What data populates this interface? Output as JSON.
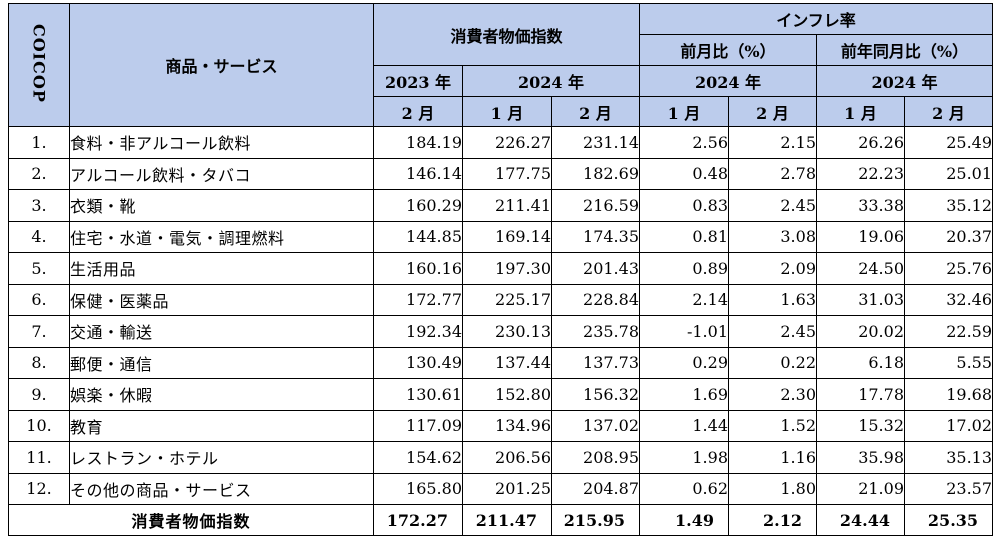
{
  "header": {
    "coicop": "COICOP",
    "item": "商品・サービス",
    "cpi_group": "消費者物価指数",
    "inflation_group": "インフレ率",
    "mom": "前月比（%）",
    "yoy": "前年同月比（%）",
    "year_2023": "2023 年",
    "year_2024_a": "2024 年",
    "year_2024_b": "2024 年",
    "year_2024_c": "2024 年",
    "m_feb_1": "2 月",
    "m_jan_1": "1 月",
    "m_feb_2": "2 月",
    "m_jan_2": "1 月",
    "m_feb_3": "2 月",
    "m_jan_3": "1 月",
    "m_feb_4": "2 月"
  },
  "rows": [
    {
      "code": "1.",
      "name": "食料・非アルコール飲料",
      "v1": "184.19",
      "v2": "226.27",
      "v3": "231.14",
      "v4": "2.56",
      "v5": "2.15",
      "v6": "26.26",
      "v7": "25.49"
    },
    {
      "code": "2.",
      "name": "アルコール飲料・タバコ",
      "v1": "146.14",
      "v2": "177.75",
      "v3": "182.69",
      "v4": "0.48",
      "v5": "2.78",
      "v6": "22.23",
      "v7": "25.01"
    },
    {
      "code": "3.",
      "name": "衣類・靴",
      "v1": "160.29",
      "v2": "211.41",
      "v3": "216.59",
      "v4": "0.83",
      "v5": "2.45",
      "v6": "33.38",
      "v7": "35.12"
    },
    {
      "code": "4.",
      "name": "住宅・水道・電気・調理燃料",
      "v1": "144.85",
      "v2": "169.14",
      "v3": "174.35",
      "v4": "0.81",
      "v5": "3.08",
      "v6": "19.06",
      "v7": "20.37"
    },
    {
      "code": "5.",
      "name": "生活用品",
      "v1": "160.16",
      "v2": "197.30",
      "v3": "201.43",
      "v4": "0.89",
      "v5": "2.09",
      "v6": "24.50",
      "v7": "25.76"
    },
    {
      "code": "6.",
      "name": "保健・医薬品",
      "v1": "172.77",
      "v2": "225.17",
      "v3": "228.84",
      "v4": "2.14",
      "v5": "1.63",
      "v6": "31.03",
      "v7": "32.46"
    },
    {
      "code": "7.",
      "name": "交通・輸送",
      "v1": "192.34",
      "v2": "230.13",
      "v3": "235.78",
      "v4": "-1.01",
      "v5": "2.45",
      "v6": "20.02",
      "v7": "22.59"
    },
    {
      "code": "8.",
      "name": "郵便・通信",
      "v1": "130.49",
      "v2": "137.44",
      "v3": "137.73",
      "v4": "0.29",
      "v5": "0.22",
      "v6": "6.18",
      "v7": "5.55"
    },
    {
      "code": "9.",
      "name": "娯楽・休暇",
      "v1": "130.61",
      "v2": "152.80",
      "v3": "156.32",
      "v4": "1.69",
      "v5": "2.30",
      "v6": "17.78",
      "v7": "19.68"
    },
    {
      "code": "10.",
      "name": "教育",
      "v1": "117.09",
      "v2": "134.96",
      "v3": "137.02",
      "v4": "1.44",
      "v5": "1.52",
      "v6": "15.32",
      "v7": "17.02"
    },
    {
      "code": "11.",
      "name": "レストラン・ホテル",
      "v1": "154.62",
      "v2": "206.56",
      "v3": "208.95",
      "v4": "1.98",
      "v5": "1.16",
      "v6": "35.98",
      "v7": "35.13"
    },
    {
      "code": "12.",
      "name": "その他の商品・サービス",
      "v1": "165.80",
      "v2": "201.25",
      "v3": "204.87",
      "v4": "0.62",
      "v5": "1.80",
      "v6": "21.09",
      "v7": "23.57"
    }
  ],
  "total": {
    "label": "消費者物価指数",
    "v1": "172.27",
    "v2": "211.47",
    "v3": "215.95",
    "v4": "1.49",
    "v5": "2.12",
    "v6": "24.44",
    "v7": "25.35"
  },
  "colors": {
    "header_bg": "#bcccec",
    "border": "#000000"
  }
}
